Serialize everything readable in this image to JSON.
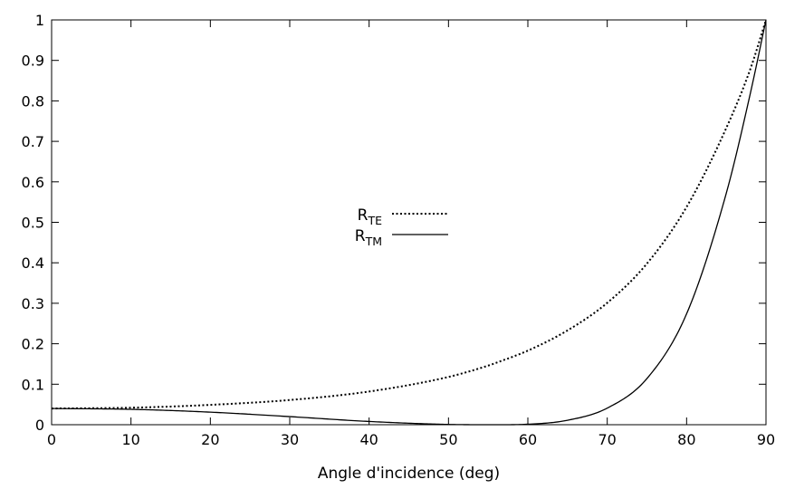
{
  "chart_data": {
    "type": "line",
    "xlabel": "Angle d'incidence (deg)",
    "ylabel": "",
    "xlim": [
      0,
      90
    ],
    "ylim": [
      0,
      1
    ],
    "grid": false,
    "legend_position": "center",
    "x_ticks": [
      "0",
      "10",
      "20",
      "30",
      "40",
      "50",
      "60",
      "70",
      "80",
      "90"
    ],
    "y_ticks": [
      "0",
      "0.1",
      "0.2",
      "0.3",
      "0.4",
      "0.5",
      "0.6",
      "0.7",
      "0.8",
      "0.9",
      "1"
    ],
    "x": [
      0,
      10,
      20,
      30,
      40,
      50,
      55,
      56.3,
      60,
      65,
      70,
      75,
      80,
      85,
      88,
      90
    ],
    "series": [
      {
        "name": "R",
        "subscript": "TE",
        "style": "dotted",
        "color": "#000000",
        "values": [
          0.04,
          0.042,
          0.049,
          0.061,
          0.082,
          0.118,
          0.146,
          0.155,
          0.183,
          0.233,
          0.301,
          0.398,
          0.538,
          0.733,
          0.877,
          1.0
        ]
      },
      {
        "name": "R",
        "subscript": "TM",
        "style": "solid",
        "color": "#000000",
        "values": [
          0.04,
          0.038,
          0.031,
          0.02,
          0.008,
          0.0007,
          0.0,
          0.0,
          0.0012,
          0.011,
          0.041,
          0.114,
          0.274,
          0.572,
          0.816,
          1.0
        ]
      }
    ]
  }
}
